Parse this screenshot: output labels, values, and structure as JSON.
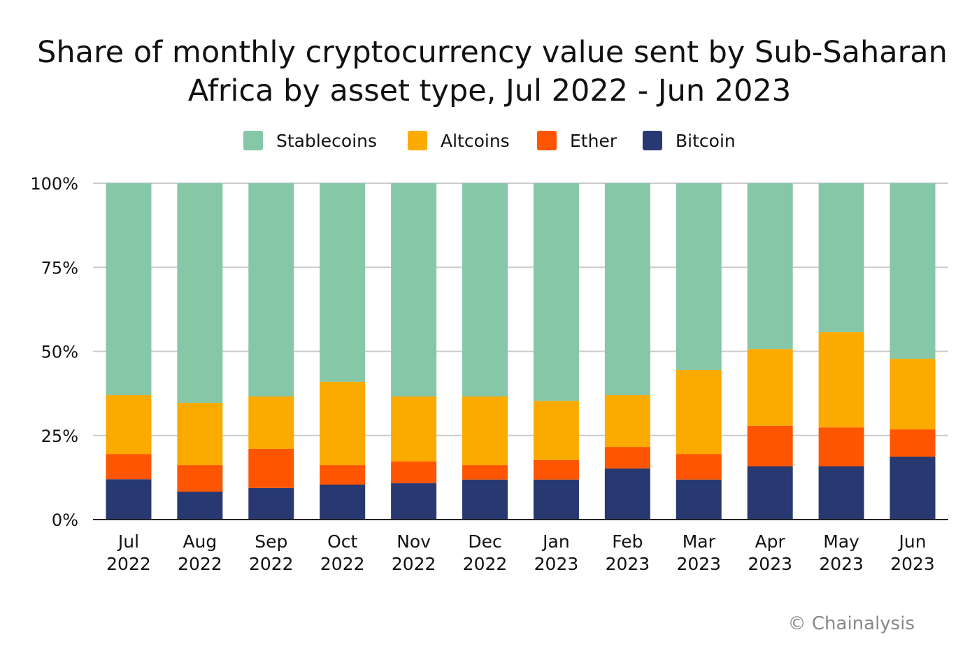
{
  "chart_data": {
    "type": "bar",
    "stacked": true,
    "title_lines": [
      "Share of monthly cryptocurrency value sent by Sub-Saharan",
      "Africa by asset type, Jul 2022 - Jun 2023"
    ],
    "xlabel": "",
    "ylabel": "",
    "ylim": [
      0,
      100
    ],
    "y_ticks": [
      "0%",
      "25%",
      "50%",
      "75%",
      "100%"
    ],
    "grid": true,
    "legend_position": "top",
    "categories": [
      [
        "Jul",
        "2022"
      ],
      [
        "Aug",
        "2022"
      ],
      [
        "Sep",
        "2022"
      ],
      [
        "Oct",
        "2022"
      ],
      [
        "Nov",
        "2022"
      ],
      [
        "Dec",
        "2022"
      ],
      [
        "Jan",
        "2023"
      ],
      [
        "Feb",
        "2023"
      ],
      [
        "Mar",
        "2023"
      ],
      [
        "Apr",
        "2023"
      ],
      [
        "May",
        "2023"
      ],
      [
        "Jun",
        "2023"
      ]
    ],
    "series": [
      {
        "name": "Bitcoin",
        "color": "#283870",
        "values": [
          12,
          8.3,
          9.4,
          10.4,
          10.8,
          11.9,
          11.9,
          15.2,
          11.9,
          15.8,
          15.8,
          18.7
        ]
      },
      {
        "name": "Ether",
        "color": "#fd5500",
        "values": [
          7.5,
          7.9,
          11.6,
          5.8,
          6.5,
          4.3,
          5.8,
          6.4,
          7.6,
          12.1,
          11.6,
          8.1
        ]
      },
      {
        "name": "Altcoins",
        "color": "#fbaa00",
        "values": [
          17.5,
          18.5,
          15.6,
          24.8,
          19.3,
          20.4,
          17.6,
          15.4,
          25,
          22.8,
          28.3,
          21
        ]
      },
      {
        "name": "Stablecoins",
        "color": "#86c7a8",
        "values": [
          63,
          65.3,
          63.4,
          59,
          63.4,
          63.4,
          64.7,
          63,
          55.5,
          49.3,
          44.3,
          52.2
        ]
      }
    ],
    "legend_order": [
      "Stablecoins",
      "Altcoins",
      "Ether",
      "Bitcoin"
    ]
  },
  "footer": {
    "credit": "© Chainalysis"
  }
}
